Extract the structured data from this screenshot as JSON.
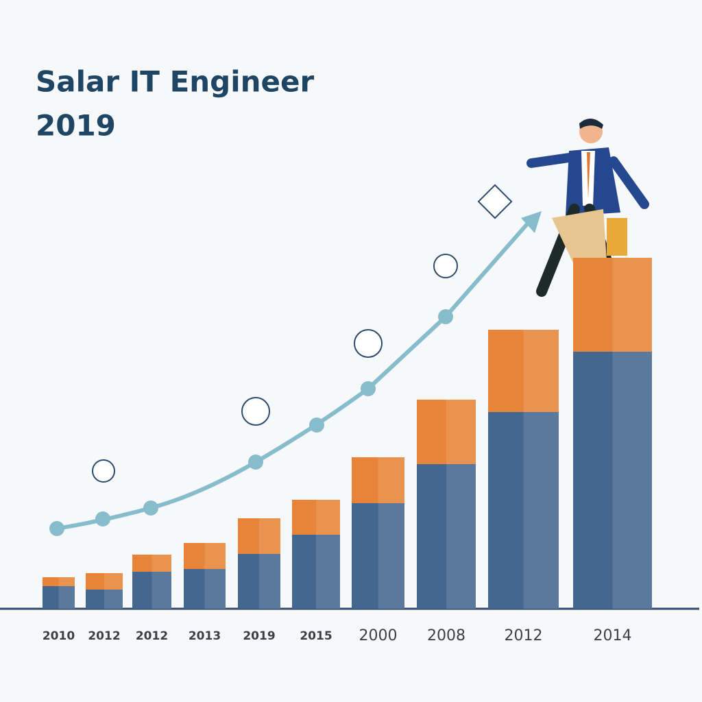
{
  "chart_data": {
    "type": "stacked_bar",
    "title": "Salar IT Engineer",
    "subtitle": "2019",
    "categories": [
      "2010",
      "2012",
      "2012",
      "2013",
      "2019",
      "2015",
      "2000",
      "2008",
      "2012",
      "2014"
    ],
    "series": [
      {
        "color": "#44678f",
        "values": [
          33,
          28,
          54,
          58,
          80,
          108,
          154,
          211,
          287,
          375
        ]
      },
      {
        "color": "#e8843a",
        "values": [
          13,
          24,
          25,
          38,
          52,
          51,
          67,
          94,
          120,
          137
        ]
      }
    ],
    "ylim": [
      0,
      512
    ]
  }
}
